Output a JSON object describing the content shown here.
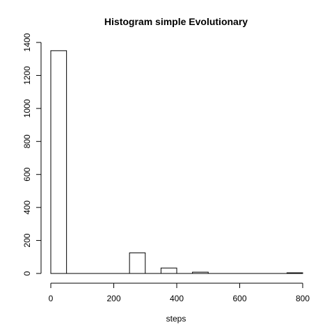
{
  "chart_data": {
    "type": "bar",
    "title": "Histogram simple Evolutionary",
    "xlabel": "steps",
    "ylabel": "",
    "bin_width": 50,
    "bins": [
      {
        "start": 0,
        "end": 50,
        "count": 1350
      },
      {
        "start": 50,
        "end": 100,
        "count": 0
      },
      {
        "start": 100,
        "end": 150,
        "count": 0
      },
      {
        "start": 150,
        "end": 200,
        "count": 0
      },
      {
        "start": 200,
        "end": 250,
        "count": 0
      },
      {
        "start": 250,
        "end": 300,
        "count": 125
      },
      {
        "start": 300,
        "end": 350,
        "count": 0
      },
      {
        "start": 350,
        "end": 400,
        "count": 33
      },
      {
        "start": 400,
        "end": 450,
        "count": 0
      },
      {
        "start": 450,
        "end": 500,
        "count": 8
      },
      {
        "start": 500,
        "end": 550,
        "count": 0
      },
      {
        "start": 550,
        "end": 600,
        "count": 0
      },
      {
        "start": 600,
        "end": 650,
        "count": 0
      },
      {
        "start": 650,
        "end": 700,
        "count": 0
      },
      {
        "start": 700,
        "end": 750,
        "count": 0
      },
      {
        "start": 750,
        "end": 800,
        "count": 4
      }
    ],
    "xlim": [
      0,
      800
    ],
    "ylim": [
      0,
      1400
    ],
    "x_ticks": [
      0,
      200,
      400,
      600,
      800
    ],
    "y_ticks": [
      0,
      200,
      400,
      600,
      800,
      1000,
      1200,
      1400
    ],
    "grid": false,
    "bar_fill": "#ffffff",
    "bar_stroke": "#000000"
  }
}
